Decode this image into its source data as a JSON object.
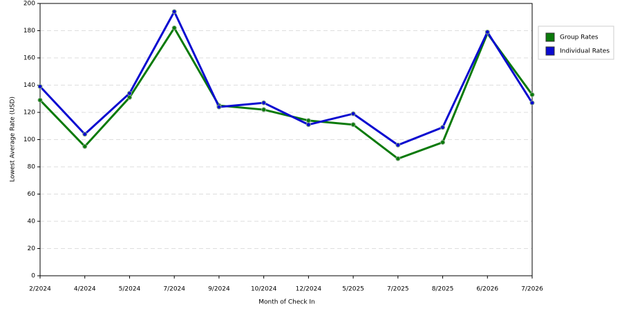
{
  "chart_data": {
    "type": "line",
    "x_label": "Month of Check In",
    "y_label": "Lowest Average Rate (USD)",
    "categories": [
      "2/2024",
      "4/2024",
      "5/2024",
      "7/2024",
      "9/2024",
      "10/2024",
      "12/2024",
      "5/2025",
      "7/2025",
      "8/2025",
      "6/2026",
      "7/2026"
    ],
    "series": [
      {
        "name": "Group Rates",
        "color": "#0a7a0a",
        "values": [
          129,
          95,
          131,
          182,
          125,
          122,
          114,
          111,
          86,
          98,
          178,
          133
        ]
      },
      {
        "name": "Individual Rates",
        "color": "#0a0ad0",
        "values": [
          139,
          104,
          134,
          194,
          124,
          127,
          111,
          119,
          96,
          109,
          179,
          127
        ]
      }
    ],
    "ylim": [
      0,
      200
    ],
    "yticks": [
      0,
      20,
      40,
      60,
      80,
      100,
      120,
      140,
      160,
      180,
      200
    ],
    "grid": true,
    "legend": "right"
  }
}
